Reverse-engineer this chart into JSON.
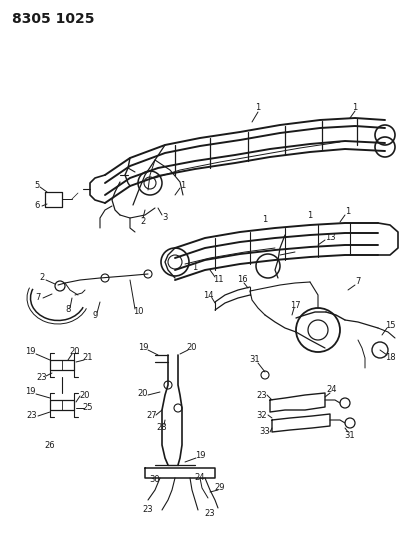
{
  "title": "8305 1025",
  "bg_color": "#ffffff",
  "line_color": "#1a1a1a",
  "title_fontsize": 10,
  "label_fontsize": 6.0,
  "fig_w": 4.1,
  "fig_h": 5.33,
  "dpi": 100
}
